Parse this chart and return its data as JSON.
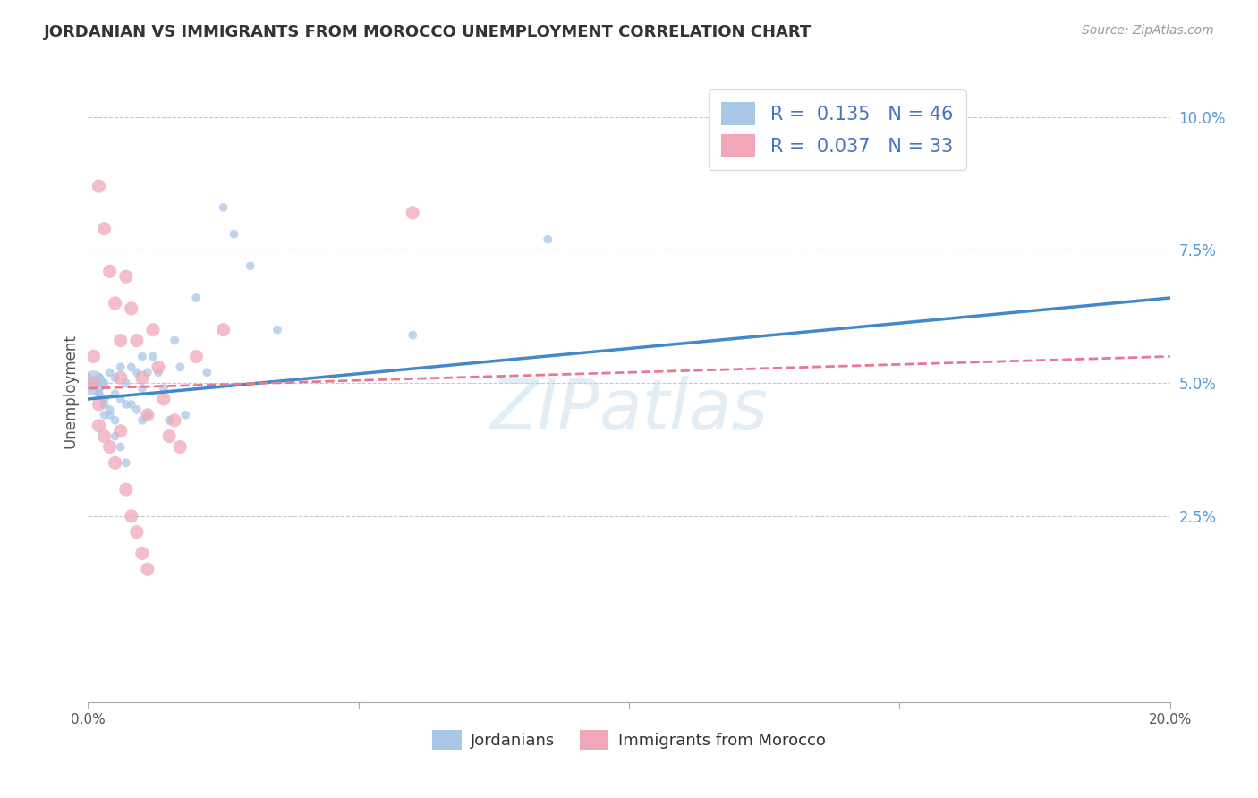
{
  "title": "JORDANIAN VS IMMIGRANTS FROM MOROCCO UNEMPLOYMENT CORRELATION CHART",
  "source": "Source: ZipAtlas.com",
  "ylabel": "Unemployment",
  "xlim": [
    0.0,
    0.2
  ],
  "ylim": [
    -0.01,
    0.107
  ],
  "xticks": [
    0.0,
    0.05,
    0.1,
    0.15,
    0.2
  ],
  "xtick_labels": [
    "0.0%",
    "",
    "",
    "",
    "20.0%"
  ],
  "yticks_right": [
    0.025,
    0.05,
    0.075,
    0.1
  ],
  "ytick_labels_right": [
    "2.5%",
    "5.0%",
    "7.5%",
    "10.0%"
  ],
  "grid_color": "#c8c8c8",
  "watermark": "ZIPatlas",
  "blue_color": "#a8c8e8",
  "pink_color": "#f0a8b8",
  "blue_line_color": "#4488cc",
  "pink_line_color": "#e87890",
  "R_blue": 0.135,
  "N_blue": 46,
  "R_pink": 0.037,
  "N_pink": 33,
  "blue_line_x0": 0.0,
  "blue_line_y0": 0.047,
  "blue_line_x1": 0.2,
  "blue_line_y1": 0.066,
  "pink_line_x0": 0.0,
  "pink_line_y0": 0.049,
  "pink_line_x1": 0.2,
  "pink_line_y1": 0.055,
  "blue_scatter_x": [
    0.002,
    0.002,
    0.003,
    0.003,
    0.003,
    0.004,
    0.004,
    0.005,
    0.005,
    0.005,
    0.006,
    0.006,
    0.007,
    0.007,
    0.008,
    0.008,
    0.009,
    0.009,
    0.01,
    0.01,
    0.01,
    0.011,
    0.011,
    0.012,
    0.013,
    0.014,
    0.015,
    0.016,
    0.017,
    0.018,
    0.02,
    0.022,
    0.025,
    0.027,
    0.03,
    0.035,
    0.06,
    0.085,
    0.001,
    0.002,
    0.003,
    0.004,
    0.005,
    0.006,
    0.007,
    0.0
  ],
  "blue_scatter_y": [
    0.051,
    0.048,
    0.05,
    0.047,
    0.044,
    0.052,
    0.045,
    0.051,
    0.048,
    0.043,
    0.053,
    0.047,
    0.05,
    0.046,
    0.053,
    0.046,
    0.052,
    0.045,
    0.055,
    0.049,
    0.043,
    0.052,
    0.044,
    0.055,
    0.052,
    0.049,
    0.043,
    0.058,
    0.053,
    0.044,
    0.066,
    0.052,
    0.083,
    0.078,
    0.072,
    0.06,
    0.059,
    0.077,
    0.05,
    0.048,
    0.046,
    0.044,
    0.04,
    0.038,
    0.035,
    0.051
  ],
  "blue_scatter_sizes": [
    50,
    50,
    50,
    50,
    50,
    50,
    50,
    50,
    50,
    50,
    50,
    50,
    50,
    50,
    50,
    50,
    50,
    50,
    50,
    50,
    50,
    50,
    50,
    50,
    50,
    50,
    50,
    50,
    50,
    50,
    50,
    50,
    50,
    50,
    50,
    50,
    50,
    50,
    400,
    50,
    50,
    50,
    50,
    50,
    50,
    50
  ],
  "pink_scatter_x": [
    0.002,
    0.003,
    0.004,
    0.005,
    0.006,
    0.006,
    0.007,
    0.008,
    0.009,
    0.01,
    0.011,
    0.012,
    0.013,
    0.014,
    0.015,
    0.016,
    0.017,
    0.02,
    0.025,
    0.06,
    0.001,
    0.001,
    0.002,
    0.002,
    0.003,
    0.004,
    0.005,
    0.006,
    0.007,
    0.008,
    0.009,
    0.01,
    0.011
  ],
  "pink_scatter_y": [
    0.087,
    0.079,
    0.071,
    0.065,
    0.058,
    0.051,
    0.07,
    0.064,
    0.058,
    0.051,
    0.044,
    0.06,
    0.053,
    0.047,
    0.04,
    0.043,
    0.038,
    0.055,
    0.06,
    0.082,
    0.055,
    0.05,
    0.046,
    0.042,
    0.04,
    0.038,
    0.035,
    0.041,
    0.03,
    0.025,
    0.022,
    0.018,
    0.015
  ]
}
